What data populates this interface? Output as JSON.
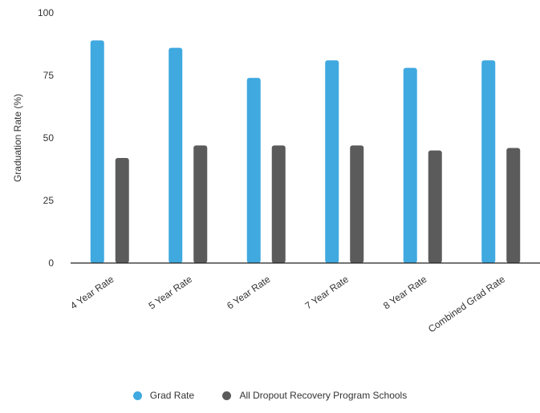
{
  "chart_data": {
    "type": "bar",
    "title": "",
    "xlabel": "",
    "ylabel": "Graduation Rate (%)",
    "ylim": [
      0,
      100
    ],
    "yticks": [
      0,
      25,
      50,
      75,
      100
    ],
    "grid": false,
    "legend_position": "bottom",
    "categories": [
      "4 Year Rate",
      "5 Year Rate",
      "6 Year Rate",
      "7 Year Rate",
      "8 Year Rate",
      "Combined Grad Rate"
    ],
    "series": [
      {
        "name": "Grad Rate",
        "color": "#3fa9e0",
        "values": [
          89,
          86,
          74,
          81,
          78,
          81
        ]
      },
      {
        "name": "All Dropout Recovery Program Schools",
        "color": "#5b5b5b",
        "values": [
          42,
          47,
          47,
          47,
          45,
          46
        ]
      }
    ]
  }
}
